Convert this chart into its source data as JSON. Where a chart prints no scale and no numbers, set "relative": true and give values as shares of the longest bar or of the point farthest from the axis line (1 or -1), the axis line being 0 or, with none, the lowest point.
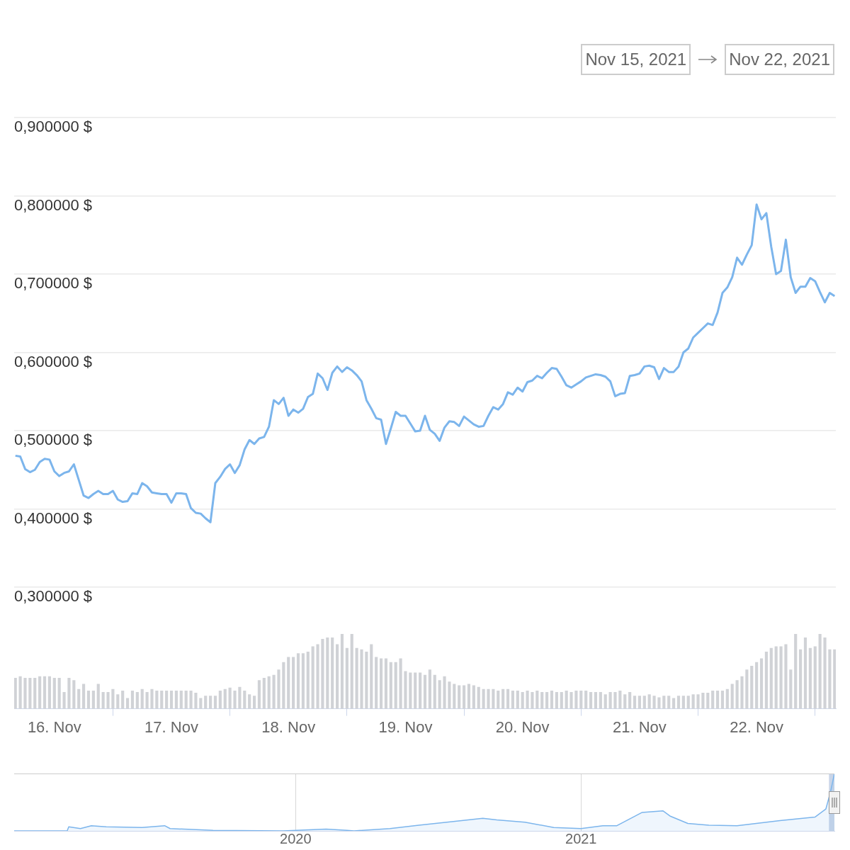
{
  "chart_data": [
    {
      "type": "line",
      "color": "#7cb5ec",
      "marker": "none",
      "grid": "y",
      "tick_labels": "y",
      "annotations": [
        "Nov 15, 2021",
        "Nov 22, 2021"
      ],
      "xlim": [
        "2021-11-15T15:45",
        "2021-11-22T16:15"
      ],
      "ylim": [
        0.3,
        0.9
      ],
      "yticks": [
        {
          "value": 0.3,
          "label": "0,300000 $"
        },
        {
          "value": 0.4,
          "label": "0,400000 $"
        },
        {
          "value": 0.5,
          "label": "0,500000 $"
        },
        {
          "value": 0.6,
          "label": "0,600000 $"
        },
        {
          "value": 0.7,
          "label": "0,700000 $"
        },
        {
          "value": 0.8,
          "label": "0,800000 $"
        },
        {
          "value": 0.9,
          "label": "0,900000 $"
        }
      ],
      "x": [
        "2021-11-15T16:00",
        "2021-11-15T17:00",
        "2021-11-15T18:00",
        "2021-11-15T19:00",
        "2021-11-15T20:00",
        "2021-11-15T21:00",
        "2021-11-15T22:00",
        "2021-11-15T23:00",
        "2021-11-16T00:00",
        "2021-11-16T01:00",
        "2021-11-16T02:00",
        "2021-11-16T03:00",
        "2021-11-16T04:00",
        "2021-11-16T05:00",
        "2021-11-16T06:00",
        "2021-11-16T07:00",
        "2021-11-16T08:00",
        "2021-11-16T09:00",
        "2021-11-16T10:00",
        "2021-11-16T11:00",
        "2021-11-16T12:00",
        "2021-11-16T13:00",
        "2021-11-16T14:00",
        "2021-11-16T15:00",
        "2021-11-16T16:00",
        "2021-11-16T17:00",
        "2021-11-16T18:00",
        "2021-11-16T19:00",
        "2021-11-16T20:00",
        "2021-11-16T21:00",
        "2021-11-16T22:00",
        "2021-11-16T23:00",
        "2021-11-17T00:00",
        "2021-11-17T01:00",
        "2021-11-17T02:00",
        "2021-11-17T03:00",
        "2021-11-17T04:00",
        "2021-11-17T05:00",
        "2021-11-17T06:00",
        "2021-11-17T07:00",
        "2021-11-17T08:00",
        "2021-11-17T09:00",
        "2021-11-17T10:00",
        "2021-11-17T11:00",
        "2021-11-17T12:00",
        "2021-11-17T13:00",
        "2021-11-17T14:00",
        "2021-11-17T15:00",
        "2021-11-17T16:00",
        "2021-11-17T17:00",
        "2021-11-17T18:00",
        "2021-11-17T19:00",
        "2021-11-17T20:00",
        "2021-11-17T21:00",
        "2021-11-17T22:00",
        "2021-11-17T23:00",
        "2021-11-18T00:00",
        "2021-11-18T01:00",
        "2021-11-18T02:00",
        "2021-11-18T03:00",
        "2021-11-18T04:00",
        "2021-11-18T05:00",
        "2021-11-18T06:00",
        "2021-11-18T07:00",
        "2021-11-18T08:00",
        "2021-11-18T09:00",
        "2021-11-18T10:00",
        "2021-11-18T11:00",
        "2021-11-18T12:00",
        "2021-11-18T13:00",
        "2021-11-18T14:00",
        "2021-11-18T15:00",
        "2021-11-18T16:00",
        "2021-11-18T17:00",
        "2021-11-18T18:00",
        "2021-11-18T19:00",
        "2021-11-18T20:00",
        "2021-11-18T21:00",
        "2021-11-18T22:00",
        "2021-11-18T23:00",
        "2021-11-19T00:00",
        "2021-11-19T01:00",
        "2021-11-19T02:00",
        "2021-11-19T03:00",
        "2021-11-19T04:00",
        "2021-11-19T05:00",
        "2021-11-19T06:00",
        "2021-11-19T07:00",
        "2021-11-19T08:00",
        "2021-11-19T09:00",
        "2021-11-19T10:00",
        "2021-11-19T11:00",
        "2021-11-19T12:00",
        "2021-11-19T13:00",
        "2021-11-19T14:00",
        "2021-11-19T15:00",
        "2021-11-19T16:00",
        "2021-11-19T17:00",
        "2021-11-19T18:00",
        "2021-11-19T19:00",
        "2021-11-19T20:00",
        "2021-11-19T21:00",
        "2021-11-19T22:00",
        "2021-11-19T23:00",
        "2021-11-20T00:00",
        "2021-11-20T01:00",
        "2021-11-20T02:00",
        "2021-11-20T03:00",
        "2021-11-20T04:00",
        "2021-11-20T05:00",
        "2021-11-20T06:00",
        "2021-11-20T07:00",
        "2021-11-20T08:00",
        "2021-11-20T09:00",
        "2021-11-20T10:00",
        "2021-11-20T11:00",
        "2021-11-20T12:00",
        "2021-11-20T13:00",
        "2021-11-20T14:00",
        "2021-11-20T15:00",
        "2021-11-20T16:00",
        "2021-11-20T17:00",
        "2021-11-20T18:00",
        "2021-11-20T19:00",
        "2021-11-20T20:00",
        "2021-11-20T21:00",
        "2021-11-20T22:00",
        "2021-11-20T23:00",
        "2021-11-21T00:00",
        "2021-11-21T01:00",
        "2021-11-21T02:00",
        "2021-11-21T03:00",
        "2021-11-21T04:00",
        "2021-11-21T05:00",
        "2021-11-21T06:00",
        "2021-11-21T07:00",
        "2021-11-21T08:00",
        "2021-11-21T09:00",
        "2021-11-21T10:00",
        "2021-11-21T11:00",
        "2021-11-21T12:00",
        "2021-11-21T13:00",
        "2021-11-21T14:00",
        "2021-11-21T15:00",
        "2021-11-21T16:00",
        "2021-11-21T17:00",
        "2021-11-21T18:00",
        "2021-11-21T19:00",
        "2021-11-21T20:00",
        "2021-11-21T21:00",
        "2021-11-21T22:00",
        "2021-11-21T23:00",
        "2021-11-22T00:00",
        "2021-11-22T01:00",
        "2021-11-22T02:00",
        "2021-11-22T03:00",
        "2021-11-22T04:00",
        "2021-11-22T05:00",
        "2021-11-22T06:00",
        "2021-11-22T07:00",
        "2021-11-22T08:00",
        "2021-11-22T09:00",
        "2021-11-22T10:00",
        "2021-11-22T11:00",
        "2021-11-22T12:00",
        "2021-11-22T13:00",
        "2021-11-22T14:00",
        "2021-11-22T15:00",
        "2021-11-22T16:00"
      ],
      "values": [
        0.468,
        0.467,
        0.451,
        0.447,
        0.45,
        0.46,
        0.464,
        0.463,
        0.448,
        0.442,
        0.446,
        0.448,
        0.457,
        0.437,
        0.417,
        0.414,
        0.419,
        0.423,
        0.419,
        0.419,
        0.423,
        0.412,
        0.409,
        0.41,
        0.42,
        0.419,
        0.433,
        0.429,
        0.421,
        0.42,
        0.419,
        0.419,
        0.408,
        0.42,
        0.42,
        0.419,
        0.401,
        0.395,
        0.394,
        0.388,
        0.383,
        0.433,
        0.441,
        0.451,
        0.457,
        0.446,
        0.456,
        0.476,
        0.488,
        0.483,
        0.49,
        0.492,
        0.505,
        0.539,
        0.534,
        0.542,
        0.519,
        0.527,
        0.523,
        0.528,
        0.543,
        0.547,
        0.573,
        0.567,
        0.552,
        0.574,
        0.582,
        0.575,
        0.581,
        0.577,
        0.571,
        0.563,
        0.539,
        0.528,
        0.516,
        0.514,
        0.483,
        0.503,
        0.524,
        0.519,
        0.519,
        0.509,
        0.499,
        0.5,
        0.519,
        0.501,
        0.496,
        0.487,
        0.504,
        0.512,
        0.511,
        0.506,
        0.518,
        0.513,
        0.508,
        0.505,
        0.506,
        0.519,
        0.53,
        0.527,
        0.534,
        0.549,
        0.546,
        0.555,
        0.55,
        0.562,
        0.564,
        0.57,
        0.567,
        0.574,
        0.58,
        0.579,
        0.569,
        0.558,
        0.555,
        0.559,
        0.563,
        0.568,
        0.57,
        0.572,
        0.571,
        0.569,
        0.563,
        0.544,
        0.547,
        0.548,
        0.57,
        0.571,
        0.573,
        0.582,
        0.583,
        0.581,
        0.566,
        0.58,
        0.575,
        0.575,
        0.582,
        0.6,
        0.605,
        0.619,
        0.625,
        0.631,
        0.637,
        0.635,
        0.651,
        0.676,
        0.683,
        0.696,
        0.721,
        0.712,
        0.725,
        0.737,
        0.789,
        0.77,
        0.778,
        0.735,
        0.7,
        0.704,
        0.744,
        0.696,
        0.676,
        0.684,
        0.684,
        0.695,
        0.691,
        0.677,
        0.664,
        0.676,
        0.672
      ]
    },
    {
      "type": "bar",
      "color": "#d0d2d6",
      "relative": true,
      "tick_labels": "x",
      "xlim": [
        "2021-11-15T15:45",
        "2021-11-22T16:15"
      ],
      "xticks": [
        {
          "value": "2021-11-16",
          "label": "16. Nov"
        },
        {
          "value": "2021-11-17",
          "label": "17. Nov"
        },
        {
          "value": "2021-11-18",
          "label": "18. Nov"
        },
        {
          "value": "2021-11-19",
          "label": "19. Nov"
        },
        {
          "value": "2021-11-20",
          "label": "20. Nov"
        },
        {
          "value": "2021-11-21",
          "label": "21. Nov"
        },
        {
          "value": "2021-11-22",
          "label": "22. Nov"
        }
      ],
      "x": [
        "2021-11-15T16:00",
        "2021-11-15T17:00",
        "2021-11-15T18:00",
        "2021-11-15T19:00",
        "2021-11-15T20:00",
        "2021-11-15T21:00",
        "2021-11-15T22:00",
        "2021-11-15T23:00",
        "2021-11-16T00:00",
        "2021-11-16T01:00",
        "2021-11-16T02:00",
        "2021-11-16T03:00",
        "2021-11-16T04:00",
        "2021-11-16T05:00",
        "2021-11-16T06:00",
        "2021-11-16T07:00",
        "2021-11-16T08:00",
        "2021-11-16T09:00",
        "2021-11-16T10:00",
        "2021-11-16T11:00",
        "2021-11-16T12:00",
        "2021-11-16T13:00",
        "2021-11-16T14:00",
        "2021-11-16T15:00",
        "2021-11-16T16:00",
        "2021-11-16T17:00",
        "2021-11-16T18:00",
        "2021-11-16T19:00",
        "2021-11-16T20:00",
        "2021-11-16T21:00",
        "2021-11-16T22:00",
        "2021-11-16T23:00",
        "2021-11-17T00:00",
        "2021-11-17T01:00",
        "2021-11-17T02:00",
        "2021-11-17T03:00",
        "2021-11-17T04:00",
        "2021-11-17T05:00",
        "2021-11-17T06:00",
        "2021-11-17T07:00",
        "2021-11-17T08:00",
        "2021-11-17T09:00",
        "2021-11-17T10:00",
        "2021-11-17T11:00",
        "2021-11-17T12:00",
        "2021-11-17T13:00",
        "2021-11-17T14:00",
        "2021-11-17T15:00",
        "2021-11-17T16:00",
        "2021-11-17T17:00",
        "2021-11-17T18:00",
        "2021-11-17T19:00",
        "2021-11-17T20:00",
        "2021-11-17T21:00",
        "2021-11-17T22:00",
        "2021-11-17T23:00",
        "2021-11-18T00:00",
        "2021-11-18T01:00",
        "2021-11-18T02:00",
        "2021-11-18T03:00",
        "2021-11-18T04:00",
        "2021-11-18T05:00",
        "2021-11-18T06:00",
        "2021-11-18T07:00",
        "2021-11-18T08:00",
        "2021-11-18T09:00",
        "2021-11-18T10:00",
        "2021-11-18T11:00",
        "2021-11-18T12:00",
        "2021-11-18T13:00",
        "2021-11-18T14:00",
        "2021-11-18T15:00",
        "2021-11-18T16:00",
        "2021-11-18T17:00",
        "2021-11-18T18:00",
        "2021-11-18T19:00",
        "2021-11-18T20:00",
        "2021-11-18T21:00",
        "2021-11-18T22:00",
        "2021-11-18T23:00",
        "2021-11-19T00:00",
        "2021-11-19T01:00",
        "2021-11-19T02:00",
        "2021-11-19T03:00",
        "2021-11-19T04:00",
        "2021-11-19T05:00",
        "2021-11-19T06:00",
        "2021-11-19T07:00",
        "2021-11-19T08:00",
        "2021-11-19T09:00",
        "2021-11-19T10:00",
        "2021-11-19T11:00",
        "2021-11-19T12:00",
        "2021-11-19T13:00",
        "2021-11-19T14:00",
        "2021-11-19T15:00",
        "2021-11-19T16:00",
        "2021-11-19T17:00",
        "2021-11-19T18:00",
        "2021-11-19T19:00",
        "2021-11-19T20:00",
        "2021-11-19T21:00",
        "2021-11-19T22:00",
        "2021-11-19T23:00",
        "2021-11-20T00:00",
        "2021-11-20T01:00",
        "2021-11-20T02:00",
        "2021-11-20T03:00",
        "2021-11-20T04:00",
        "2021-11-20T05:00",
        "2021-11-20T06:00",
        "2021-11-20T07:00",
        "2021-11-20T08:00",
        "2021-11-20T09:00",
        "2021-11-20T10:00",
        "2021-11-20T11:00",
        "2021-11-20T12:00",
        "2021-11-20T13:00",
        "2021-11-20T14:00",
        "2021-11-20T15:00",
        "2021-11-20T16:00",
        "2021-11-20T17:00",
        "2021-11-20T18:00",
        "2021-11-20T19:00",
        "2021-11-20T20:00",
        "2021-11-20T21:00",
        "2021-11-20T22:00",
        "2021-11-20T23:00",
        "2021-11-21T00:00",
        "2021-11-21T01:00",
        "2021-11-21T02:00",
        "2021-11-21T03:00",
        "2021-11-21T04:00",
        "2021-11-21T05:00",
        "2021-11-21T06:00",
        "2021-11-21T07:00",
        "2021-11-21T08:00",
        "2021-11-21T09:00",
        "2021-11-21T10:00",
        "2021-11-21T11:00",
        "2021-11-21T12:00",
        "2021-11-21T13:00",
        "2021-11-21T14:00",
        "2021-11-21T15:00",
        "2021-11-21T16:00",
        "2021-11-21T17:00",
        "2021-11-21T18:00",
        "2021-11-21T19:00",
        "2021-11-21T20:00",
        "2021-11-21T21:00",
        "2021-11-21T22:00",
        "2021-11-21T23:00",
        "2021-11-22T00:00",
        "2021-11-22T01:00",
        "2021-11-22T02:00",
        "2021-11-22T03:00",
        "2021-11-22T04:00",
        "2021-11-22T05:00",
        "2021-11-22T06:00",
        "2021-11-22T07:00",
        "2021-11-22T08:00",
        "2021-11-22T09:00",
        "2021-11-22T10:00",
        "2021-11-22T11:00",
        "2021-11-22T12:00",
        "2021-11-22T13:00",
        "2021-11-22T14:00",
        "2021-11-22T15:00",
        "2021-11-22T16:00"
      ],
      "values": [
        0.41,
        0.43,
        0.41,
        0.41,
        0.41,
        0.43,
        0.43,
        0.43,
        0.41,
        0.41,
        0.22,
        0.41,
        0.38,
        0.26,
        0.33,
        0.24,
        0.24,
        0.33,
        0.22,
        0.22,
        0.26,
        0.19,
        0.24,
        0.14,
        0.24,
        0.22,
        0.26,
        0.22,
        0.26,
        0.24,
        0.24,
        0.24,
        0.24,
        0.24,
        0.24,
        0.24,
        0.24,
        0.21,
        0.14,
        0.17,
        0.17,
        0.17,
        0.24,
        0.26,
        0.28,
        0.24,
        0.29,
        0.24,
        0.19,
        0.17,
        0.38,
        0.41,
        0.43,
        0.45,
        0.52,
        0.62,
        0.69,
        0.69,
        0.74,
        0.74,
        0.76,
        0.83,
        0.86,
        0.93,
        0.95,
        0.95,
        0.86,
        1.0,
        0.81,
        1.0,
        0.81,
        0.79,
        0.76,
        0.86,
        0.69,
        0.67,
        0.67,
        0.62,
        0.62,
        0.67,
        0.5,
        0.48,
        0.48,
        0.48,
        0.45,
        0.52,
        0.45,
        0.38,
        0.43,
        0.36,
        0.33,
        0.31,
        0.31,
        0.33,
        0.31,
        0.29,
        0.26,
        0.26,
        0.26,
        0.24,
        0.26,
        0.26,
        0.24,
        0.24,
        0.22,
        0.24,
        0.22,
        0.24,
        0.22,
        0.22,
        0.24,
        0.22,
        0.22,
        0.24,
        0.22,
        0.24,
        0.24,
        0.24,
        0.22,
        0.22,
        0.22,
        0.19,
        0.22,
        0.22,
        0.24,
        0.19,
        0.22,
        0.17,
        0.17,
        0.17,
        0.19,
        0.17,
        0.15,
        0.17,
        0.17,
        0.14,
        0.17,
        0.17,
        0.17,
        0.19,
        0.19,
        0.21,
        0.21,
        0.24,
        0.24,
        0.24,
        0.26,
        0.33,
        0.38,
        0.43,
        0.52,
        0.57,
        0.62,
        0.67,
        0.76,
        0.81,
        0.83,
        0.83,
        0.86,
        0.52,
        1.0,
        0.79,
        0.95,
        0.81,
        0.83,
        1.0,
        0.95,
        0.79,
        0.79
      ]
    },
    {
      "type": "area",
      "color": "#7cb5ec",
      "relative": true,
      "marker": "none",
      "grid": "x",
      "tick_labels": "x",
      "xlim": [
        "2019-01-05",
        "2021-11-22"
      ],
      "xticks": [
        "2020",
        "2021"
      ],
      "bands": [
        {
          "axis": "x",
          "from": "2021-11-15",
          "to": "2021-11-22",
          "color": "#c9d5e8"
        }
      ],
      "x": [
        "2019-01-05",
        "2019-03-14",
        "2019-03-16",
        "2019-03-31",
        "2019-04-14",
        "2019-05-03",
        "2019-06-18",
        "2019-07-17",
        "2019-07-24",
        "2019-09-17",
        "2019-12-16",
        "2020-02-09",
        "2020-03-07",
        "2020-03-16",
        "2020-05-01",
        "2020-06-07",
        "2020-07-13",
        "2020-08-28",
        "2020-09-15",
        "2020-10-21",
        "2020-11-27",
        "2021-01-01",
        "2021-01-29",
        "2021-02-16",
        "2021-03-20",
        "2021-04-16",
        "2021-04-25",
        "2021-05-18",
        "2021-06-14",
        "2021-07-20",
        "2021-09-13",
        "2021-10-28",
        "2021-11-11",
        "2021-11-17",
        "2021-11-22"
      ],
      "values": [
        0,
        0,
        0.07,
        0.04,
        0.09,
        0.07,
        0.06,
        0.09,
        0.04,
        0.01,
        0,
        0.03,
        0.01,
        0,
        0.04,
        0.1,
        0.15,
        0.22,
        0.19,
        0.15,
        0.06,
        0.04,
        0.09,
        0.09,
        0.32,
        0.35,
        0.26,
        0.13,
        0.1,
        0.09,
        0.18,
        0.24,
        0.38,
        0.68,
        1
      ]
    }
  ]
}
